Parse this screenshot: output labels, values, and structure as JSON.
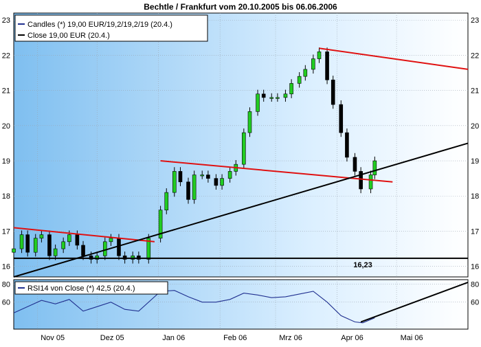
{
  "chart_data": [
    {
      "type": "candlestick",
      "title": "Bechtle / Frankfurt vom 20.10.2005 bis 06.06.2006",
      "ylim": [
        15.7,
        23.2
      ],
      "yticks": [
        16,
        17,
        18,
        19,
        20,
        21,
        22,
        23
      ],
      "xlim": [
        "2005-10-20",
        "2006-06-06"
      ],
      "xticks": [
        {
          "label": "Nov 05",
          "date": "2005-11-01"
        },
        {
          "label": "Dez 05",
          "date": "2005-12-01"
        },
        {
          "label": "Jan 06",
          "date": "2006-01-01"
        },
        {
          "label": "Feb 06",
          "date": "2006-02-01"
        },
        {
          "label": "Mrz 06",
          "date": "2006-03-01"
        },
        {
          "label": "Apr 06",
          "date": "2006-04-01"
        },
        {
          "label": "Mai 06",
          "date": "2006-05-01"
        }
      ],
      "grid": true,
      "legend_position": "top-left",
      "legend": [
        {
          "label": "Candles (*) 19,00 EUR/19,2/19,2/19 (20.4.)",
          "color": "#1f2f8f"
        },
        {
          "label": "Close 19,00 EUR (20.4.)",
          "color": "#000000"
        }
      ],
      "candle_up_color": "#22cc22",
      "candle_down_color": "#000000",
      "series": [
        {
          "name": "Close",
          "x": [
            "2005-10-20",
            "2005-10-24",
            "2005-10-27",
            "2005-10-31",
            "2005-11-03",
            "2005-11-07",
            "2005-11-10",
            "2005-11-14",
            "2005-11-17",
            "2005-11-21",
            "2005-11-24",
            "2005-11-28",
            "2005-12-01",
            "2005-12-05",
            "2005-12-08",
            "2005-12-12",
            "2005-12-15",
            "2005-12-19",
            "2005-12-22",
            "2005-12-27",
            "2006-01-02",
            "2006-01-05",
            "2006-01-09",
            "2006-01-12",
            "2006-01-16",
            "2006-01-19",
            "2006-01-23",
            "2006-01-26",
            "2006-01-30",
            "2006-02-02",
            "2006-02-06",
            "2006-02-09",
            "2006-02-13",
            "2006-02-16",
            "2006-02-20",
            "2006-02-23",
            "2006-02-27",
            "2006-03-02",
            "2006-03-06",
            "2006-03-09",
            "2006-03-13",
            "2006-03-16",
            "2006-03-20",
            "2006-03-23",
            "2006-03-27",
            "2006-03-30",
            "2006-04-03",
            "2006-04-06",
            "2006-04-10",
            "2006-04-13",
            "2006-04-18",
            "2006-04-20"
          ],
          "values": [
            16.5,
            16.9,
            16.4,
            16.8,
            16.9,
            16.3,
            16.5,
            16.7,
            16.9,
            16.6,
            16.3,
            16.2,
            16.3,
            16.7,
            16.8,
            16.3,
            16.2,
            16.3,
            16.2,
            16.8,
            17.6,
            18.1,
            18.7,
            18.4,
            17.9,
            18.6,
            18.6,
            18.5,
            18.3,
            18.5,
            18.7,
            18.9,
            19.8,
            20.4,
            20.9,
            20.8,
            20.8,
            20.8,
            20.9,
            21.2,
            21.4,
            21.6,
            21.9,
            22.1,
            21.3,
            20.6,
            19.8,
            19.1,
            18.7,
            18.2,
            18.6,
            19.0
          ]
        },
        {
          "name": "Overlay lines (red)",
          "lines": [
            {
              "from": [
                "2005-10-20",
                17.1
              ],
              "to": [
                "2005-12-30",
                16.7
              ]
            },
            {
              "from": [
                "2006-01-02",
                19.0
              ],
              "to": [
                "2006-04-29",
                18.4
              ]
            },
            {
              "from": [
                "2006-03-23",
                22.2
              ],
              "to": [
                "2006-06-06",
                21.6
              ]
            }
          ]
        },
        {
          "name": "Overlay lines (black)",
          "lines": [
            {
              "from": [
                "2005-10-20",
                15.7
              ],
              "to": [
                "2006-06-06",
                19.5
              ]
            },
            {
              "from": [
                "2005-10-20",
                16.23
              ],
              "to": [
                "2006-06-06",
                16.23
              ]
            }
          ]
        }
      ],
      "annotations": [
        {
          "text": "16,23",
          "x": "2006-04-14",
          "y": 16.05
        }
      ]
    },
    {
      "type": "line",
      "title": "",
      "ylim": [
        30,
        85
      ],
      "yticks": [
        60,
        80
      ],
      "legend": [
        {
          "label": "RSI14 von Close (*) 42,5 (20.4.)",
          "color": "#1f2f8f"
        }
      ],
      "series": [
        {
          "name": "RSI14",
          "x": [
            "2005-10-20",
            "2005-10-27",
            "2005-11-03",
            "2005-11-10",
            "2005-11-17",
            "2005-11-24",
            "2005-12-01",
            "2005-12-08",
            "2005-12-15",
            "2005-12-22",
            "2006-01-02",
            "2006-01-09",
            "2006-01-16",
            "2006-01-23",
            "2006-01-30",
            "2006-02-06",
            "2006-02-13",
            "2006-02-20",
            "2006-02-27",
            "2006-03-06",
            "2006-03-13",
            "2006-03-20",
            "2006-03-27",
            "2006-04-03",
            "2006-04-10",
            "2006-04-14",
            "2006-04-20"
          ],
          "values": [
            48,
            55,
            62,
            58,
            63,
            50,
            55,
            60,
            52,
            50,
            72,
            73,
            66,
            60,
            60,
            63,
            70,
            68,
            65,
            66,
            69,
            72,
            60,
            45,
            38,
            37,
            42.5
          ]
        }
      ],
      "annotations": [
        {
          "text": "trend line",
          "from": [
            "2006-04-13",
            38
          ],
          "to": [
            "2006-06-06",
            82
          ]
        }
      ]
    }
  ]
}
